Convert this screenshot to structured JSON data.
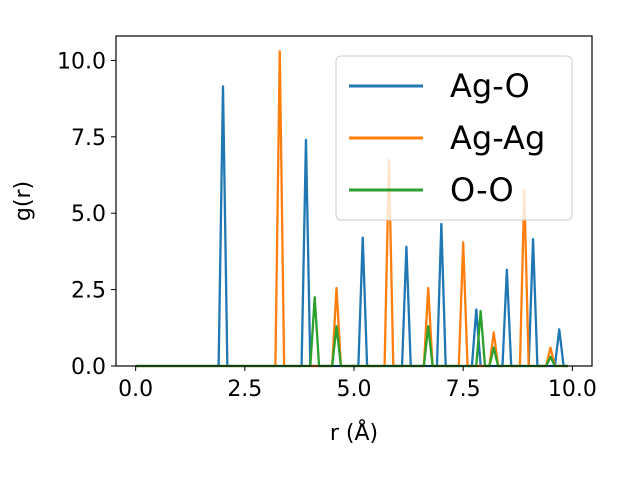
{
  "chart_data": {
    "type": "line",
    "xlabel": "r (Å)",
    "ylabel": "g(r)",
    "xlim": [
      -0.45,
      10.45
    ],
    "ylim": [
      0,
      10.8
    ],
    "x_ticks": [
      0.0,
      2.5,
      5.0,
      7.5,
      10.0
    ],
    "x_tick_labels": [
      "0.0",
      "2.5",
      "5.0",
      "7.5",
      "10.0"
    ],
    "y_ticks": [
      0.0,
      2.5,
      5.0,
      7.5,
      10.0
    ],
    "y_tick_labels": [
      "0.0",
      "2.5",
      "5.0",
      "7.5",
      "10.0"
    ],
    "grid": false,
    "legend_position": "top-right",
    "series": [
      {
        "name": "Ag-O",
        "color": "#1f77b4",
        "x": [
          0,
          1.9,
          2.0,
          2.1,
          3.8,
          3.9,
          4.0,
          5.1,
          5.2,
          5.3,
          6.1,
          6.2,
          6.3,
          6.9,
          7.0,
          7.1,
          7.7,
          7.8,
          7.9,
          8.4,
          8.5,
          8.6,
          9.0,
          9.1,
          9.2,
          9.6,
          9.7,
          9.8,
          9.9
        ],
        "y": [
          0,
          0,
          9.15,
          0,
          0,
          7.4,
          0,
          0,
          4.2,
          0,
          0,
          3.9,
          0,
          0,
          4.65,
          0,
          0,
          1.85,
          0,
          0,
          3.15,
          0,
          0,
          4.15,
          0,
          0,
          1.2,
          0,
          0
        ]
      },
      {
        "name": "Ag-Ag",
        "color": "#ff7f0e",
        "x": [
          0,
          3.2,
          3.3,
          3.4,
          4.5,
          4.6,
          4.7,
          5.7,
          5.8,
          5.9,
          6.6,
          6.7,
          6.8,
          7.4,
          7.5,
          7.6,
          8.1,
          8.2,
          8.3,
          8.8,
          8.9,
          9.0,
          9.4,
          9.5,
          9.6,
          9.9
        ],
        "y": [
          0,
          0,
          10.3,
          0,
          0,
          2.55,
          0,
          0,
          6.75,
          0,
          0,
          2.55,
          0,
          0,
          4.05,
          0,
          0,
          1.1,
          0,
          0,
          5.75,
          0,
          0,
          0.6,
          0,
          0
        ]
      },
      {
        "name": "O-O",
        "color": "#2ca02c",
        "x": [
          0,
          4.0,
          4.1,
          4.2,
          4.5,
          4.6,
          4.7,
          6.6,
          6.7,
          6.8,
          7.8,
          7.9,
          8.0,
          8.1,
          8.2,
          8.3,
          9.4,
          9.5,
          9.6,
          9.9
        ],
        "y": [
          0,
          0,
          2.25,
          0,
          0,
          1.3,
          0,
          0,
          1.3,
          0,
          0,
          1.8,
          0,
          0,
          0.6,
          0,
          0,
          0.3,
          0,
          0
        ]
      }
    ]
  }
}
